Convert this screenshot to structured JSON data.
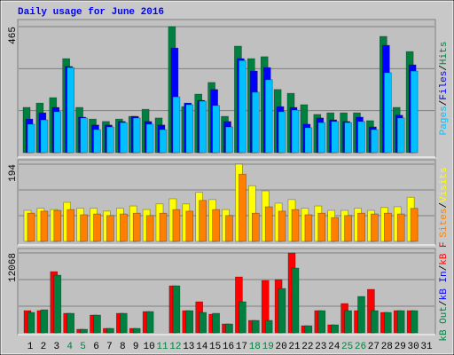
{
  "title": "Daily usage for June 2016",
  "legend_separator": "/",
  "category_colors": [
    "#000000",
    "#000000",
    "#000000",
    "#008040",
    "#008040",
    "#000000",
    "#000000",
    "#000000",
    "#000000",
    "#000000",
    "#008040",
    "#008040",
    "#000000",
    "#000000",
    "#000000",
    "#000000",
    "#000000",
    "#008040",
    "#008040",
    "#000000",
    "#000000",
    "#000000",
    "#000000",
    "#000000",
    "#008040",
    "#008040",
    "#000000",
    "#000000",
    "#000000",
    "#000000",
    "#000000"
  ],
  "chart_data": [
    {
      "type": "bar",
      "categories": [
        "1",
        "2",
        "3",
        "4",
        "5",
        "6",
        "7",
        "8",
        "9",
        "10",
        "11",
        "12",
        "13",
        "14",
        "15",
        "16",
        "17",
        "18",
        "19",
        "20",
        "21",
        "22",
        "23",
        "24",
        "25",
        "26",
        "27",
        "28",
        "29",
        "30",
        "31"
      ],
      "ylim": [
        0,
        465
      ],
      "yticks": [
        465
      ],
      "grid": true,
      "series": [
        {
          "name": "Hits",
          "color": "#008040",
          "values": [
            167,
            183,
            203,
            347,
            167,
            124,
            115,
            124,
            134,
            160,
            128,
            465,
            170,
            216,
            259,
            134,
            393,
            347,
            354,
            233,
            219,
            177,
            141,
            147,
            147,
            147,
            118,
            429,
            167,
            373,
            null
          ]
        },
        {
          "name": "Files",
          "color": "#0000ff",
          "values": [
            124,
            147,
            167,
            318,
            131,
            102,
            102,
            115,
            134,
            115,
            102,
            386,
            183,
            193,
            233,
            115,
            347,
            301,
            314,
            170,
            167,
            105,
            128,
            121,
            115,
            131,
            95,
            396,
            138,
            324,
            null
          ]
        },
        {
          "name": "Pages",
          "color": "#00c0ff",
          "values": [
            105,
            121,
            151,
            314,
            128,
            85,
            95,
            111,
            128,
            105,
            85,
            206,
            177,
            190,
            174,
            95,
            340,
            223,
            269,
            151,
            157,
            92,
            111,
            115,
            111,
            115,
            85,
            295,
            128,
            301,
            null
          ]
        }
      ]
    },
    {
      "type": "bar",
      "categories": [
        "1",
        "2",
        "3",
        "4",
        "5",
        "6",
        "7",
        "8",
        "9",
        "10",
        "11",
        "12",
        "13",
        "14",
        "15",
        "16",
        "17",
        "18",
        "19",
        "20",
        "21",
        "22",
        "23",
        "24",
        "25",
        "26",
        "27",
        "28",
        "29",
        "30",
        "31"
      ],
      "ylim": [
        0,
        194
      ],
      "yticks": [
        194
      ],
      "grid": true,
      "series": [
        {
          "name": "Visits",
          "color": "#ffff00",
          "values": [
            78,
            83,
            80,
            98,
            83,
            83,
            76,
            83,
            89,
            80,
            94,
            107,
            94,
            123,
            105,
            80,
            194,
            140,
            127,
            96,
            105,
            83,
            89,
            78,
            78,
            83,
            78,
            85,
            87,
            111,
            null
          ]
        },
        {
          "name": "Sites",
          "color": "#ff8000",
          "values": [
            71,
            76,
            78,
            80,
            67,
            69,
            65,
            69,
            71,
            65,
            71,
            80,
            76,
            103,
            80,
            65,
            169,
            71,
            87,
            76,
            80,
            67,
            71,
            60,
            65,
            71,
            69,
            71,
            69,
            83,
            null
          ]
        }
      ]
    },
    {
      "type": "bar",
      "categories": [
        "1",
        "2",
        "3",
        "4",
        "5",
        "6",
        "7",
        "8",
        "9",
        "10",
        "11",
        "12",
        "13",
        "14",
        "15",
        "16",
        "17",
        "18",
        "19",
        "20",
        "21",
        "22",
        "23",
        "24",
        "25",
        "26",
        "27",
        "28",
        "29",
        "30",
        "31"
      ],
      "ylim": [
        0,
        12068
      ],
      "yticks": [
        12068
      ],
      "grid": true,
      "series": [
        {
          "name": "kB F",
          "color": "#ff0000",
          "values": [
            3350,
            3350,
            9246,
            2948,
            536,
            2680,
            670,
            2948,
            670,
            3216,
            0,
            7102,
            3350,
            4690,
            2814,
            1340,
            8442,
            1876,
            7906,
            8040,
            12068,
            1072,
            3350,
            1206,
            4422,
            3350,
            6566,
            3082,
            3350,
            3350,
            null
          ]
        },
        {
          "name": "kB In",
          "color": "#0000ff",
          "values": [
            0,
            0,
            0,
            0,
            0,
            0,
            0,
            0,
            0,
            0,
            0,
            0,
            0,
            0,
            0,
            0,
            0,
            0,
            0,
            0,
            0,
            0,
            0,
            0,
            0,
            0,
            0,
            0,
            0,
            0,
            null
          ]
        },
        {
          "name": "kB Out",
          "color": "#008040",
          "values": [
            3082,
            3484,
            8710,
            2948,
            536,
            2680,
            670,
            2948,
            670,
            3216,
            0,
            7102,
            3350,
            3082,
            2948,
            1340,
            4690,
            1876,
            1876,
            6700,
            9782,
            1072,
            3350,
            1206,
            3350,
            5494,
            3350,
            3082,
            3350,
            3350,
            null
          ]
        }
      ]
    }
  ]
}
